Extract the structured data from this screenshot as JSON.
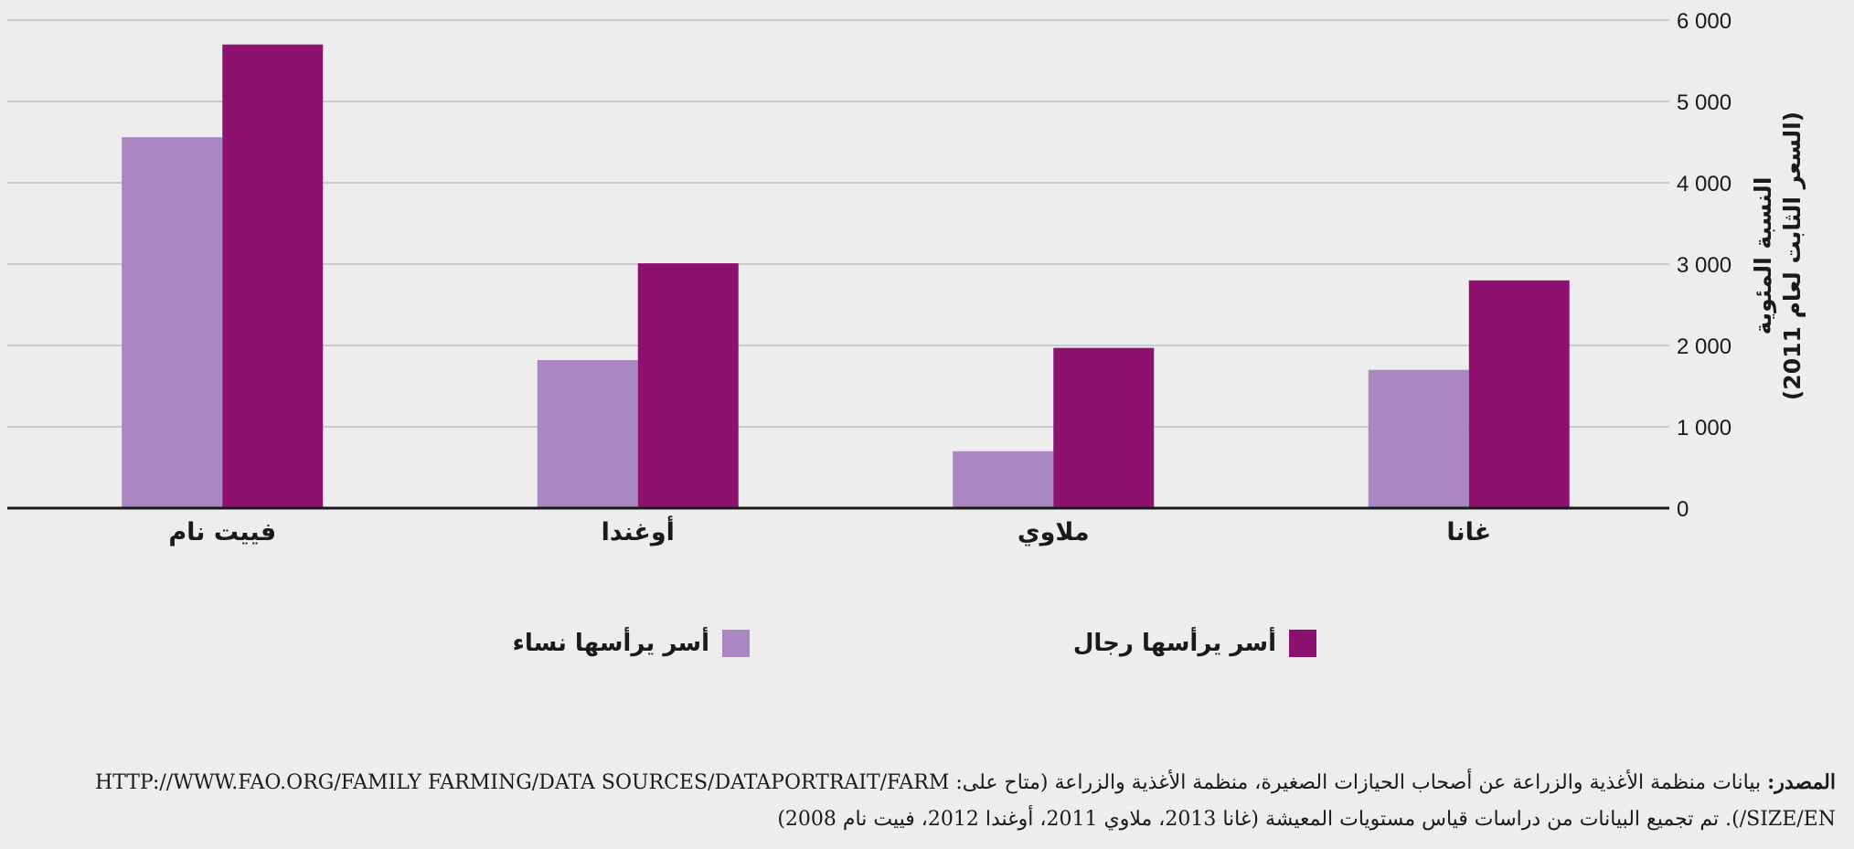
{
  "chart_data": {
    "type": "bar",
    "categories": [
      "غانا",
      "ملاوي",
      "أوغندا",
      "فييت نام"
    ],
    "series": [
      {
        "name": "أسر يرأسها نساء",
        "values": [
          1700,
          700,
          1820,
          4560
        ],
        "color": "#a987c2"
      },
      {
        "name": "أسر يرأسها رجال",
        "values": [
          2800,
          1970,
          3010,
          5700
        ],
        "color": "#8e1170"
      }
    ],
    "ylabel_lines": [
      "النسبة المئوية",
      "(السعر الثابت لعام 2011)"
    ],
    "ylim": [
      0,
      6000
    ],
    "yticks": [
      "0",
      "1 000",
      "2 000",
      "3 000",
      "4 000",
      "5 000",
      "6 000"
    ],
    "grid": true,
    "legend_position": "bottom-center"
  },
  "source": {
    "label": "المصدر:",
    "text": "بيانات منظمة الأغذية والزراعة عن أصحاب الحيازات الصغيرة، منظمة الأغذية والزراعة (متاح على: HTTP://WWW.FAO.ORG/FAMILY FARMING/DATA SOURCES/DATAPORTRAIT/FARM SIZE/EN/). تم تجميع البيانات من دراسات قياس مستويات المعيشة (غانا 2013، ملاوي 2011، أوغندا 2012، فييت نام 2008)"
  }
}
